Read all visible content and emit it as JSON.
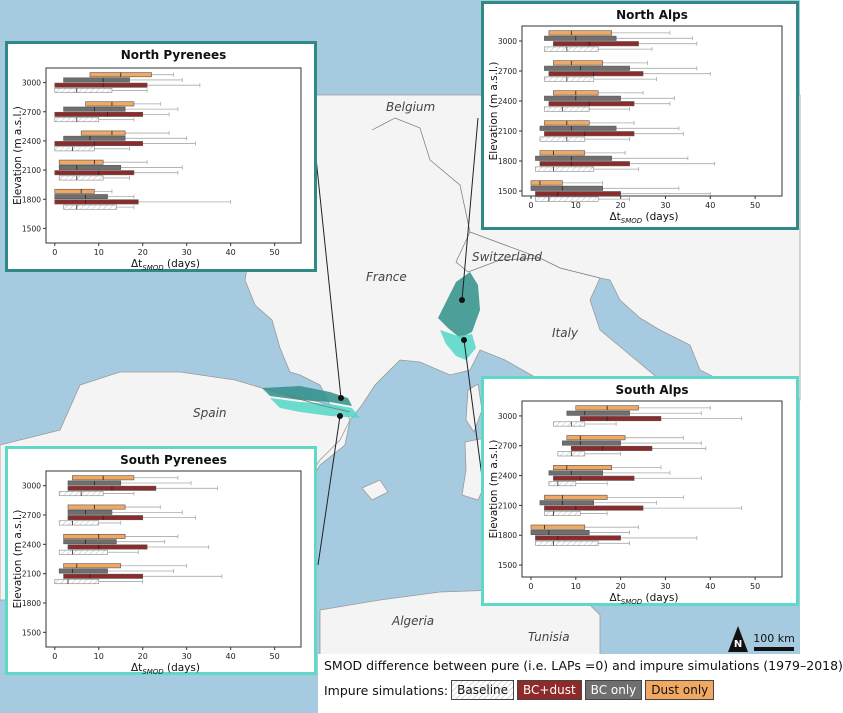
{
  "map": {
    "countries": [
      "Belgium",
      "France",
      "Switzerland",
      "Italy",
      "Spain",
      "Algeria",
      "Tunisia"
    ],
    "north_arrow": "N",
    "scale_label": "100 km",
    "colors": {
      "sea": "#a6cbe0",
      "land": "#f4f4f4",
      "north": "#2f8f8a",
      "south": "#52d6c6",
      "north_border": "#2f8a86",
      "south_border": "#5fd8c8"
    }
  },
  "legend": {
    "title": "SMOD difference between pure  (i.e. LAPs =0) and impure simulations (1979–2018)",
    "label": "Impure simulations:",
    "items": [
      "Baseline",
      "BC+dust",
      "BC only",
      "Dust only"
    ],
    "colors": {
      "Baseline": "#ffffff",
      "BC+dust": "#8e2a2a",
      "BC only": "#6f6f6f",
      "Dust only": "#f1a862"
    }
  },
  "chart_data": [
    {
      "type": "box",
      "title": "North Pyrenees",
      "ylabel": "Elevation (m a.s.l.)",
      "xlabel": "Δt",
      "xlabel_sub": "SMOD",
      "xlabel_unit": " (days)",
      "xticks": [
        0,
        10,
        20,
        30,
        40,
        50
      ],
      "yticks": [
        1500,
        1800,
        2100,
        2400,
        2700,
        3000
      ],
      "xlim": [
        -2,
        56
      ],
      "ylim": [
        1350,
        3150
      ],
      "boxes": [
        {
          "elev": 3000,
          "dust": [
            8,
            15,
            22,
            27
          ],
          "bc": [
            2,
            11,
            17,
            29
          ],
          "bcd": [
            0,
            11,
            21,
            33
          ],
          "base": [
            0,
            5,
            13,
            21
          ]
        },
        {
          "elev": 2700,
          "dust": [
            7,
            13,
            18,
            24
          ],
          "bc": [
            2,
            9,
            16,
            28
          ],
          "bcd": [
            0,
            12,
            20,
            26
          ],
          "base": [
            0,
            5,
            10,
            18
          ]
        },
        {
          "elev": 2400,
          "dust": [
            6,
            13,
            16,
            26
          ],
          "bc": [
            2,
            8,
            16,
            30
          ],
          "bcd": [
            0,
            9,
            20,
            32
          ],
          "base": [
            0,
            4,
            9,
            17
          ]
        },
        {
          "elev": 2100,
          "dust": [
            1,
            9,
            11,
            21
          ],
          "bc": [
            1,
            5,
            15,
            29
          ],
          "bcd": [
            0,
            10,
            18,
            28
          ],
          "base": [
            1,
            5,
            11,
            17
          ]
        },
        {
          "elev": 1800,
          "dust": [
            0,
            6,
            9,
            13
          ],
          "bc": [
            0,
            7,
            12,
            18
          ],
          "bcd": [
            0,
            7,
            19,
            40
          ],
          "base": [
            2,
            5,
            14,
            18
          ]
        }
      ]
    },
    {
      "type": "box",
      "title": "North Alps",
      "ylabel": "Elevation (m a.s.l.)",
      "xlabel": "Δt",
      "xlabel_sub": "SMOD",
      "xlabel_unit": " (days)",
      "xticks": [
        0,
        10,
        20,
        30,
        40,
        50
      ],
      "yticks": [
        1500,
        1800,
        2100,
        2400,
        2700,
        3000
      ],
      "xlim": [
        -2,
        56
      ],
      "ylim": [
        1450,
        3150
      ],
      "boxes": [
        {
          "elev": 3000,
          "dust": [
            4,
            9,
            18,
            31
          ],
          "bc": [
            3,
            10,
            19,
            36
          ],
          "bcd": [
            5,
            13,
            24,
            37
          ],
          "base": [
            3,
            8,
            15,
            27
          ]
        },
        {
          "elev": 2700,
          "dust": [
            5,
            9,
            16,
            26
          ],
          "bc": [
            3,
            11,
            22,
            37
          ],
          "bcd": [
            4,
            14,
            25,
            40
          ],
          "base": [
            3,
            8,
            14,
            28
          ]
        },
        {
          "elev": 2400,
          "dust": [
            5,
            10,
            15,
            25
          ],
          "bc": [
            3,
            10,
            20,
            32
          ],
          "bcd": [
            4,
            13,
            23,
            31
          ],
          "base": [
            3,
            7,
            13,
            22
          ]
        },
        {
          "elev": 2100,
          "dust": [
            3,
            8,
            13,
            23
          ],
          "bc": [
            2,
            9,
            19,
            33
          ],
          "bcd": [
            3,
            12,
            23,
            34
          ],
          "base": [
            2,
            8,
            12,
            22
          ]
        },
        {
          "elev": 1800,
          "dust": [
            2,
            5,
            12,
            21
          ],
          "bc": [
            1,
            9,
            18,
            35
          ],
          "bcd": [
            2,
            9,
            22,
            41
          ],
          "base": [
            1,
            5,
            14,
            24
          ]
        },
        {
          "elev": 1500,
          "dust": [
            0,
            2,
            7,
            16
          ],
          "bc": [
            0,
            7,
            16,
            33
          ],
          "bcd": [
            1,
            6,
            20,
            40
          ],
          "base": [
            1,
            4,
            15,
            22
          ]
        }
      ]
    },
    {
      "type": "box",
      "title": "South Pyrenees",
      "ylabel": "Elevation (m a.s.l.)",
      "xlabel": "Δt",
      "xlabel_sub": "SMOD",
      "xlabel_unit": " (days)",
      "xticks": [
        0,
        10,
        20,
        30,
        40,
        50
      ],
      "yticks": [
        1500,
        1800,
        2100,
        2400,
        2700,
        3000
      ],
      "xlim": [
        -2,
        56
      ],
      "ylim": [
        1350,
        3150
      ],
      "boxes": [
        {
          "elev": 3000,
          "dust": [
            4,
            11,
            18,
            28
          ],
          "bc": [
            3,
            9,
            15,
            31
          ],
          "bcd": [
            3,
            13,
            23,
            37
          ],
          "base": [
            1,
            6,
            11,
            18
          ]
        },
        {
          "elev": 2700,
          "dust": [
            3,
            9,
            16,
            24
          ],
          "bc": [
            3,
            7,
            13,
            29
          ],
          "bcd": [
            3,
            11,
            20,
            32
          ],
          "base": [
            1,
            4,
            10,
            15
          ]
        },
        {
          "elev": 2400,
          "dust": [
            2,
            10,
            16,
            28
          ],
          "bc": [
            2,
            7,
            14,
            25
          ],
          "bcd": [
            3,
            10,
            21,
            35
          ],
          "base": [
            1,
            4,
            12,
            19
          ]
        },
        {
          "elev": 2100,
          "dust": [
            2,
            5,
            15,
            30
          ],
          "bc": [
            1,
            4,
            12,
            27
          ],
          "bcd": [
            2,
            8,
            20,
            38
          ],
          "base": [
            0,
            3,
            10,
            20
          ]
        }
      ]
    },
    {
      "type": "box",
      "title": "South Alps",
      "ylabel": "Elevation (m a.s.l.)",
      "xlabel": "Δt",
      "xlabel_sub": "SMOD",
      "xlabel_unit": " (days)",
      "xticks": [
        0,
        10,
        20,
        30,
        40,
        50
      ],
      "yticks": [
        1500,
        1800,
        2100,
        2400,
        2700,
        3000
      ],
      "xlim": [
        -2,
        56
      ],
      "ylim": [
        1380,
        3150
      ],
      "boxes": [
        {
          "elev": 3000,
          "dust": [
            10,
            17,
            24,
            40
          ],
          "bc": [
            8,
            12,
            22,
            38
          ],
          "bcd": [
            11,
            17,
            29,
            47
          ],
          "base": [
            5,
            9,
            12,
            19
          ]
        },
        {
          "elev": 2700,
          "dust": [
            8,
            11,
            21,
            34
          ],
          "bc": [
            7,
            11,
            20,
            38
          ],
          "bcd": [
            9,
            16,
            27,
            39
          ],
          "base": [
            6,
            9,
            12,
            20
          ]
        },
        {
          "elev": 2400,
          "dust": [
            5,
            8,
            18,
            29
          ],
          "bc": [
            4,
            9,
            16,
            31
          ],
          "bcd": [
            5,
            11,
            23,
            38
          ],
          "base": [
            4,
            6,
            10,
            17
          ]
        },
        {
          "elev": 2100,
          "dust": [
            3,
            7,
            17,
            34
          ],
          "bc": [
            2,
            7,
            14,
            28
          ],
          "bcd": [
            3,
            10,
            25,
            47
          ],
          "base": [
            3,
            5,
            11,
            17
          ]
        },
        {
          "elev": 1800,
          "dust": [
            0,
            3,
            12,
            24
          ],
          "bc": [
            0,
            4,
            13,
            22
          ],
          "bcd": [
            1,
            6,
            20,
            37
          ],
          "base": [
            1,
            5,
            15,
            22
          ]
        }
      ]
    }
  ]
}
